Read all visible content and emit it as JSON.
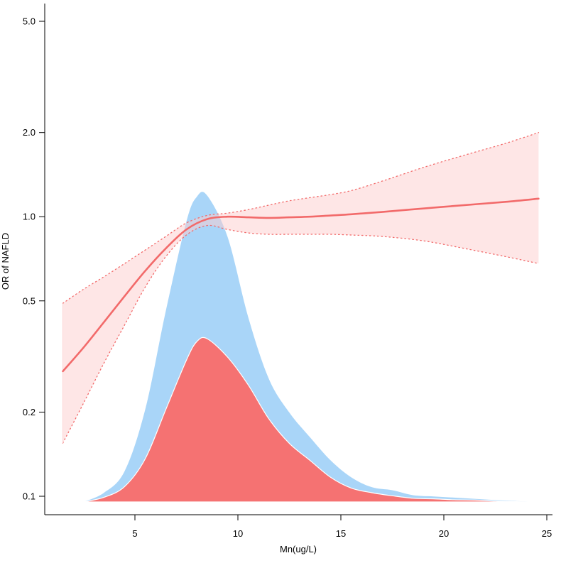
{
  "chart_data": {
    "type": "line",
    "title": "",
    "xlabel": "Mn(ug/L)",
    "ylabel": "OR of NAFLD",
    "x_scale": "linear",
    "y_scale": "log",
    "xlim": [
      1,
      25.5
    ],
    "ylim": [
      0.093,
      5.8
    ],
    "x_ticks": [
      5,
      10,
      15,
      20,
      25
    ],
    "x_tick_labels": [
      "5",
      "10",
      "15",
      "20",
      "25"
    ],
    "y_ticks": [
      0.1,
      0.2,
      0.5,
      1.0,
      2.0,
      5.0
    ],
    "y_tick_labels": [
      "0.1",
      "0.2",
      "0.5",
      "1.0",
      "2.0",
      "5.0"
    ],
    "grid": false,
    "reference_line": 1.0,
    "series": [
      {
        "kind": "odds-ratio-curve",
        "color": "#f26a6a",
        "x": [
          1.5,
          2.5,
          3.5,
          4.5,
          5.5,
          6.5,
          7.5,
          8.5,
          9.5,
          10.5,
          11.5,
          12.5,
          13.5,
          14.5,
          15.5,
          17,
          19,
          21,
          23,
          24.6
        ],
        "or": [
          0.28,
          0.34,
          0.42,
          0.52,
          0.64,
          0.77,
          0.9,
          0.98,
          1.0,
          0.995,
          0.99,
          0.995,
          1.0,
          1.01,
          1.02,
          1.04,
          1.07,
          1.1,
          1.13,
          1.16
        ],
        "lower": [
          0.155,
          0.215,
          0.3,
          0.41,
          0.56,
          0.72,
          0.86,
          0.93,
          0.9,
          0.875,
          0.865,
          0.865,
          0.865,
          0.865,
          0.86,
          0.85,
          0.82,
          0.77,
          0.72,
          0.68
        ],
        "upper": [
          0.49,
          0.55,
          0.61,
          0.68,
          0.76,
          0.85,
          0.95,
          1.01,
          1.03,
          1.06,
          1.1,
          1.14,
          1.17,
          1.2,
          1.24,
          1.34,
          1.5,
          1.66,
          1.83,
          2.0
        ]
      },
      {
        "kind": "density",
        "color": "#a9d5f8",
        "x": [
          2.5,
          3.5,
          4.5,
          5.5,
          6.5,
          7.5,
          8.0,
          8.5,
          9.5,
          10.5,
          11.5,
          12.5,
          13.5,
          14.5,
          15.5,
          16.5,
          17.5,
          18.5,
          19.5,
          20.5,
          21.5,
          22.5,
          23.5,
          24.5
        ],
        "density": [
          0.0,
          0.03,
          0.1,
          0.3,
          0.62,
          0.91,
          0.99,
          0.995,
          0.86,
          0.6,
          0.4,
          0.29,
          0.21,
          0.135,
          0.08,
          0.048,
          0.038,
          0.022,
          0.018,
          0.014,
          0.01,
          0.006,
          0.003,
          0.0
        ]
      },
      {
        "kind": "density",
        "color": "#f57272",
        "x": [
          2.5,
          3.5,
          4.5,
          5.5,
          6.5,
          7.5,
          8.0,
          8.5,
          9.5,
          10.5,
          11.5,
          12.5,
          13.5,
          14.5,
          15.5,
          16.5,
          17.5,
          18.5,
          19.5,
          20.5,
          21.5,
          22.5,
          23.5,
          24.5
        ],
        "density": [
          0.0,
          0.015,
          0.05,
          0.14,
          0.3,
          0.46,
          0.52,
          0.53,
          0.47,
          0.38,
          0.27,
          0.19,
          0.135,
          0.08,
          0.045,
          0.03,
          0.02,
          0.012,
          0.01,
          0.007,
          0.006,
          0.003,
          0.001,
          0.0
        ]
      }
    ]
  }
}
